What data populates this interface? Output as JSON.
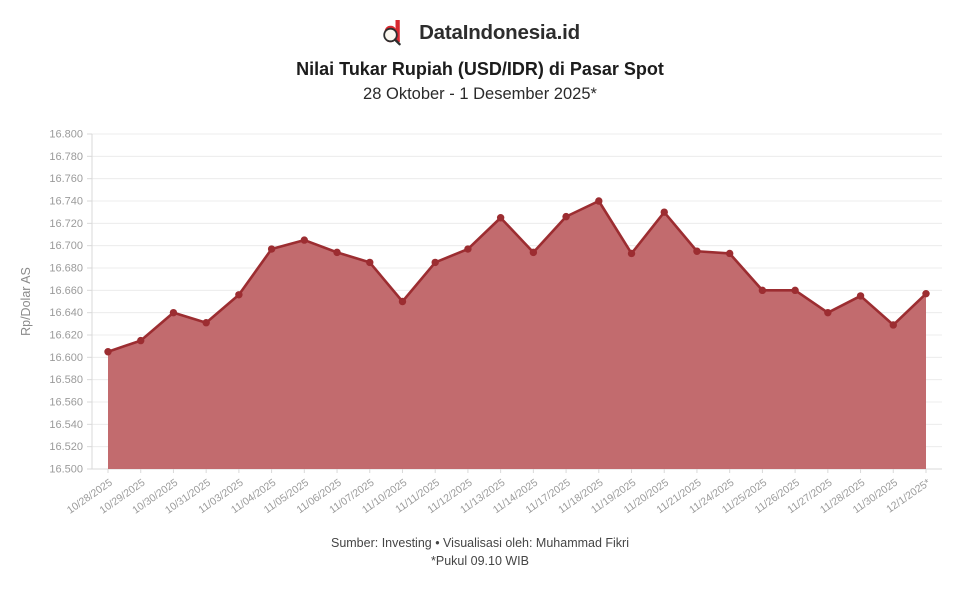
{
  "header": {
    "brand": "DataIndonesia.id",
    "title": "Nilai Tukar Rupiah (USD/IDR) di Pasar Spot",
    "subtitle": "28 Oktober - 1 Desember 2025*"
  },
  "chart_data": {
    "type": "area",
    "title": "Nilai Tukar Rupiah (USD/IDR) di Pasar Spot",
    "subtitle": "28 Oktober - 1 Desember 2025*",
    "xlabel": "",
    "ylabel": "Rp/Dolar AS",
    "ylim": [
      16500,
      16800
    ],
    "y_tick_step": 20,
    "y_tick_labels": [
      "16.500",
      "16.520",
      "16.540",
      "16.560",
      "16.580",
      "16.600",
      "16.620",
      "16.640",
      "16.660",
      "16.680",
      "16.700",
      "16.720",
      "16.740",
      "16.760",
      "16.780",
      "16.800"
    ],
    "categories": [
      "10/28/2025",
      "10/29/2025",
      "10/30/2025",
      "10/31/2025",
      "11/03/2025",
      "11/04/2025",
      "11/05/2025",
      "11/06/2025",
      "11/07/2025",
      "11/10/2025",
      "11/11/2025",
      "11/12/2025",
      "11/13/2025",
      "11/14/2025",
      "11/17/2025",
      "11/18/2025",
      "11/19/2025",
      "11/20/2025",
      "11/21/2025",
      "11/24/2025",
      "11/25/2025",
      "11/26/2025",
      "11/27/2025",
      "11/28/2025",
      "11/30/2025",
      "12/1/2025*"
    ],
    "values": [
      16605,
      16615,
      16640,
      16631,
      16656,
      16697,
      16705,
      16694,
      16685,
      16650,
      16685,
      16697,
      16725,
      16694,
      16726,
      16740,
      16693,
      16730,
      16695,
      16693,
      16660,
      16660,
      16640,
      16655,
      16629,
      16657
    ],
    "grid": "horizontal",
    "legend": "none",
    "colors": {
      "line": "#9C2D31",
      "fill": "#C26B6E",
      "grid": "#ECECEC",
      "axis": "#D9D9D9",
      "tick_label": "#9B9B9B",
      "axis_title": "#8A8A8A",
      "brand_red": "#D7282F",
      "logo_ink": "#2E2E2E",
      "lens_fill": "#FAF6EE"
    }
  },
  "footer": {
    "source": "Sumber: Investing • Visualisasi oleh: Muhammad Fikri",
    "note": "*Pukul 09.10 WIB"
  }
}
